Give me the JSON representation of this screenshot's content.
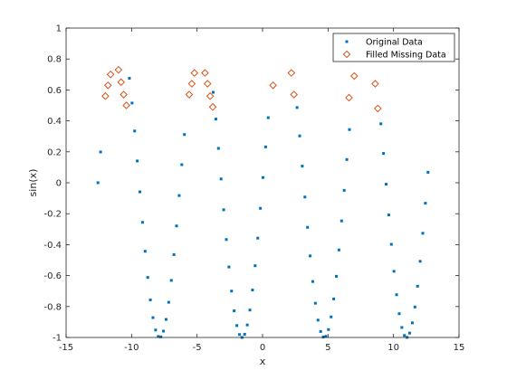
{
  "chart_data": {
    "type": "scatter",
    "title": "",
    "xlabel": "x",
    "ylabel": "sin(x)",
    "xlim": [
      -15,
      15
    ],
    "ylim": [
      -1,
      1
    ],
    "xticks": [
      -15,
      -10,
      -5,
      0,
      5,
      10,
      15
    ],
    "yticks": [
      -1,
      -0.8,
      -0.6,
      -0.4,
      -0.2,
      0,
      0.2,
      0.4,
      0.6,
      0.8,
      1
    ],
    "ytick_labels": [
      "-1",
      "-0.8",
      "-0.6",
      "-0.4",
      "-0.2",
      "0",
      "0.2",
      "0.4",
      "0.6",
      "0.8",
      "1"
    ],
    "grid": false,
    "legend_position": "top-right",
    "series": [
      {
        "name": "Original Data",
        "marker": "point",
        "color": "#0072BD",
        "x_range": [
          -12.566,
          12.566
        ],
        "x_step": 0.2,
        "y_function": "sin",
        "gaps": [
          [
            -12.17,
            -10.3
          ],
          [
            -5.9,
            -3.9
          ],
          [
            0.45,
            2.5
          ],
          [
            6.8,
            9.0
          ]
        ]
      },
      {
        "name": "Filled Missing Data",
        "marker": "diamond",
        "color": "#D95319",
        "points": [
          [
            -12.0,
            0.56
          ],
          [
            -11.8,
            0.63
          ],
          [
            -11.6,
            0.7
          ],
          [
            -10.4,
            0.5
          ],
          [
            -10.6,
            0.57
          ],
          [
            -10.8,
            0.65
          ],
          [
            -11.0,
            0.73
          ],
          [
            -5.6,
            0.57
          ],
          [
            -5.4,
            0.64
          ],
          [
            -5.2,
            0.71
          ],
          [
            -4.4,
            0.71
          ],
          [
            -4.2,
            0.64
          ],
          [
            -4.0,
            0.56
          ],
          [
            -3.8,
            0.49
          ],
          [
            0.8,
            0.63
          ],
          [
            2.2,
            0.71
          ],
          [
            2.4,
            0.57
          ],
          [
            6.6,
            0.55
          ],
          [
            7.0,
            0.69
          ],
          [
            8.6,
            0.64
          ],
          [
            8.8,
            0.48
          ]
        ]
      }
    ]
  }
}
